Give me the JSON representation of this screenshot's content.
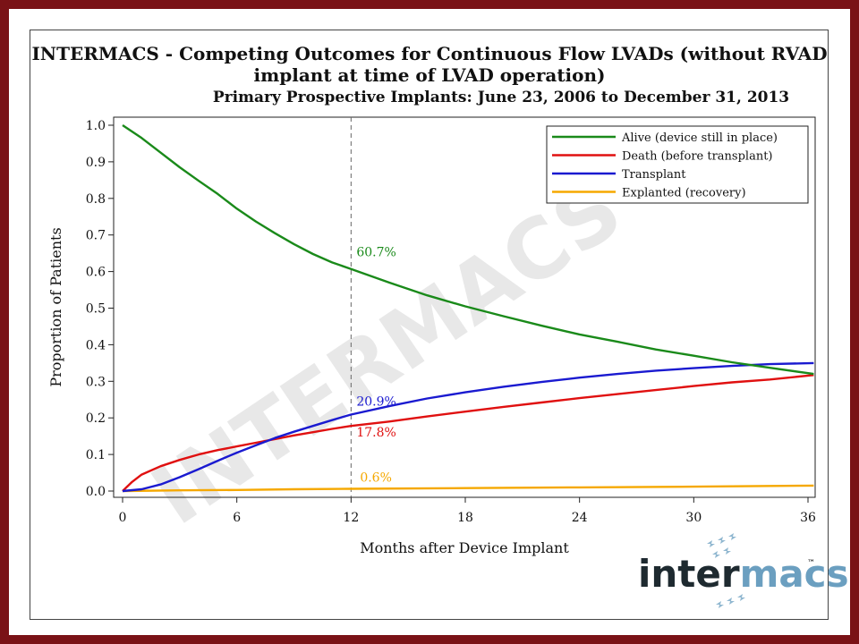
{
  "header": {
    "title_line1": "INTERMACS - Competing Outcomes for Continuous Flow LVADs (without RVAD",
    "title_line2": "implant at time of LVAD operation)",
    "subtitle": "Primary Prospective Implants: June 23, 2006 to December 31, 2013"
  },
  "watermark": "INTERMACS",
  "logo": {
    "part1": "inter",
    "part2": "macs",
    "tm": "™"
  },
  "colors": {
    "frame": "#7a1216",
    "alive": "#1a8a1a",
    "death": "#e01010",
    "transplant": "#1a1ad0",
    "explanted": "#f5a800",
    "logo_dark": "#1e2a30",
    "logo_accent": "#6b9fc0"
  },
  "chart_data": {
    "type": "line",
    "xlabel": "Months after Device Implant",
    "ylabel": "Proportion of Patients",
    "xlim": [
      0,
      36.5
    ],
    "ylim": [
      0,
      1.0
    ],
    "xticks": [
      0,
      6,
      12,
      18,
      24,
      30,
      36
    ],
    "xtick_labels": [
      "0",
      "6",
      "12",
      "18",
      "24",
      "30",
      "36"
    ],
    "yticks": [
      0.0,
      0.1,
      0.2,
      0.3,
      0.4,
      0.5,
      0.6,
      0.7,
      0.8,
      0.9,
      1.0
    ],
    "ytick_labels": [
      "0.0",
      "0.1",
      "0.2",
      "0.3",
      "0.4",
      "0.5",
      "0.6",
      "0.7",
      "0.8",
      "0.9",
      "1.0"
    ],
    "legend_position": "top-right",
    "reference_line_x": 12,
    "series": [
      {
        "name": "Alive (device still in place)",
        "color": "#1a8a1a",
        "x": [
          0,
          1,
          2,
          3,
          4,
          5,
          6,
          7,
          8,
          9,
          10,
          11,
          12,
          14,
          16,
          18,
          20,
          22,
          24,
          26,
          28,
          30,
          32,
          34,
          36.3
        ],
        "y": [
          1.0,
          0.965,
          0.925,
          0.885,
          0.848,
          0.812,
          0.772,
          0.737,
          0.705,
          0.675,
          0.648,
          0.625,
          0.607,
          0.57,
          0.535,
          0.505,
          0.478,
          0.452,
          0.428,
          0.408,
          0.387,
          0.37,
          0.352,
          0.337,
          0.32
        ]
      },
      {
        "name": "Death (before transplant)",
        "color": "#e01010",
        "x": [
          0,
          0.5,
          1,
          2,
          3,
          4,
          5,
          6,
          7,
          8,
          9,
          10,
          11,
          12,
          14,
          16,
          18,
          20,
          22,
          24,
          26,
          28,
          30,
          32,
          34,
          36.3
        ],
        "y": [
          0.0,
          0.025,
          0.045,
          0.068,
          0.085,
          0.1,
          0.112,
          0.122,
          0.132,
          0.142,
          0.152,
          0.161,
          0.17,
          0.178,
          0.19,
          0.204,
          0.217,
          0.23,
          0.242,
          0.254,
          0.265,
          0.276,
          0.287,
          0.297,
          0.305,
          0.317
        ]
      },
      {
        "name": "Transplant",
        "color": "#1a1ad0",
        "x": [
          0,
          1,
          2,
          3,
          4,
          5,
          6,
          7,
          8,
          9,
          10,
          11,
          12,
          14,
          16,
          18,
          20,
          22,
          24,
          26,
          28,
          30,
          32,
          34,
          36.3
        ],
        "y": [
          0.0,
          0.005,
          0.018,
          0.038,
          0.06,
          0.083,
          0.105,
          0.125,
          0.145,
          0.162,
          0.178,
          0.194,
          0.209,
          0.232,
          0.253,
          0.27,
          0.285,
          0.298,
          0.31,
          0.32,
          0.329,
          0.336,
          0.342,
          0.347,
          0.35
        ]
      },
      {
        "name": "Explanted (recovery)",
        "color": "#f5a800",
        "x": [
          0,
          3,
          6,
          9,
          12,
          18,
          24,
          30,
          36.3
        ],
        "y": [
          0.0,
          0.002,
          0.003,
          0.005,
          0.006,
          0.008,
          0.01,
          0.012,
          0.015
        ]
      }
    ],
    "annotations": [
      {
        "text": "60.7%",
        "x": 12,
        "y": 0.607,
        "color": "#1a8a1a"
      },
      {
        "text": "20.9%",
        "x": 12,
        "y": 0.209,
        "color": "#1a1ad0"
      },
      {
        "text": "17.8%",
        "x": 12,
        "y": 0.178,
        "color": "#e01010"
      },
      {
        "text": "0.6%",
        "x": 12,
        "y": 0.006,
        "color": "#f5a800"
      }
    ]
  }
}
